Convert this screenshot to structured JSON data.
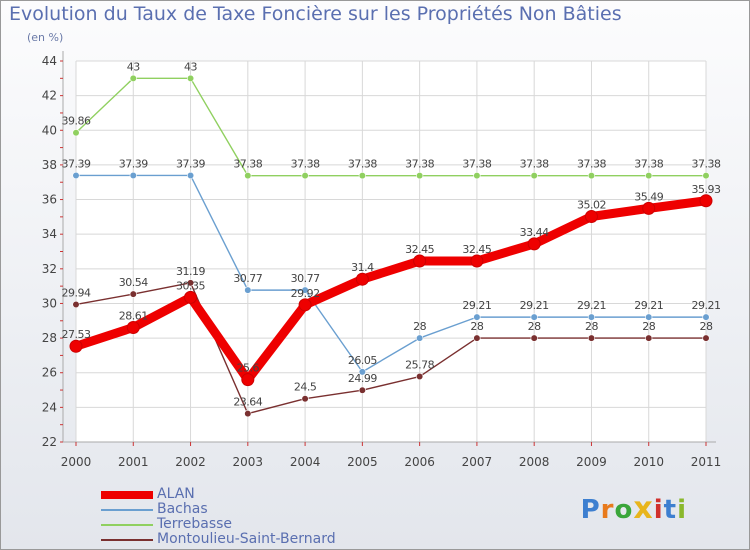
{
  "header": {
    "title": "Evolution du Taux de Taxe Foncière sur les Propriétés Non Bâties",
    "subtitle": "(en %)"
  },
  "logo": {
    "text": "Proxiti",
    "colors": [
      "#3d7fd0",
      "#e87a1c",
      "#3aa63a",
      "#e8b51c",
      "#d0302c",
      "#3d7fd0",
      "#8ab82c"
    ]
  },
  "chart_data": {
    "type": "line",
    "categories": [
      "2000",
      "2001",
      "2002",
      "2003",
      "2004",
      "2005",
      "2006",
      "2007",
      "2008",
      "2009",
      "2010",
      "2011"
    ],
    "ylim": [
      22,
      44
    ],
    "yticks": [
      22,
      24,
      26,
      28,
      30,
      32,
      34,
      36,
      38,
      40,
      42,
      44
    ],
    "grid": true,
    "legend_position": "bottom-left",
    "series": [
      {
        "name": "ALAN",
        "color": "#ee0000",
        "values": [
          27.53,
          28.61,
          30.35,
          25.6,
          29.92,
          31.4,
          32.45,
          32.45,
          33.44,
          35.02,
          35.49,
          35.93
        ],
        "labels": [
          "27.53",
          "28.61",
          "30.35",
          "25.6",
          "29.92",
          "31.4",
          "32.45",
          "32.45",
          "33.44",
          "35.02",
          "35.49",
          "35.93"
        ]
      },
      {
        "name": "Bachas",
        "color": "#6a9fd0",
        "values": [
          37.39,
          37.39,
          37.39,
          30.77,
          30.77,
          26.05,
          28,
          29.21,
          29.21,
          29.21,
          29.21,
          29.21
        ],
        "labels": [
          "37.39",
          "37.39",
          "37.39",
          "30.77",
          "30.77",
          "26.05",
          "28",
          "29.21",
          "29.21",
          "29.21",
          "29.21",
          "29.21"
        ]
      },
      {
        "name": "Terrebasse",
        "color": "#90d060",
        "values": [
          39.86,
          43,
          43,
          37.38,
          37.38,
          37.38,
          37.38,
          37.38,
          37.38,
          37.38,
          37.38,
          37.38
        ],
        "labels": [
          "39.86",
          "43",
          "43",
          "37.38",
          "37.38",
          "37.38",
          "37.38",
          "37.38",
          "37.38",
          "37.38",
          "37.38",
          "37.38"
        ]
      },
      {
        "name": "Montoulieu-Saint-Bernard",
        "color": "#7a3030",
        "values": [
          29.94,
          30.54,
          31.19,
          23.64,
          24.5,
          24.99,
          25.78,
          28,
          28,
          28,
          28,
          28
        ],
        "labels": [
          "29.94",
          "30.54",
          "31.19",
          "23.64",
          "24.5",
          "24.99",
          "25.78",
          "28",
          "28",
          "28",
          "28",
          "28"
        ]
      }
    ]
  }
}
